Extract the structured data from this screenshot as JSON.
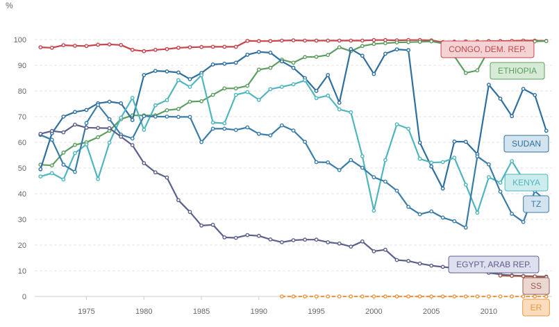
{
  "chart_data": {
    "type": "line",
    "unit_label": "%",
    "xlim": [
      1970.5,
      2015.5
    ],
    "ylim": [
      0,
      100
    ],
    "xticks": [
      1975,
      1980,
      1985,
      1990,
      1995,
      2000,
      2005,
      2010
    ],
    "yticks": [
      0,
      10,
      20,
      30,
      40,
      50,
      60,
      70,
      80,
      90,
      100
    ],
    "grid": true,
    "series": [
      {
        "name": "CONGO, DEM. REP.",
        "color": "#c8434b",
        "label_bg": "#f3d3d4",
        "points": [
          [
            1971,
            97
          ],
          [
            1972,
            96.8
          ],
          [
            1973,
            97.8
          ],
          [
            1974,
            97.6
          ],
          [
            1975,
            97.5
          ],
          [
            1976,
            98
          ],
          [
            1977,
            98.1
          ],
          [
            1978,
            97.9
          ],
          [
            1979,
            96
          ],
          [
            1980,
            95.5
          ],
          [
            1981,
            96
          ],
          [
            1982,
            96.3
          ],
          [
            1983,
            96.8
          ],
          [
            1984,
            97
          ],
          [
            1985,
            97.1
          ],
          [
            1986,
            97.2
          ],
          [
            1987,
            97.2
          ],
          [
            1988,
            97.2
          ],
          [
            1989,
            99.5
          ],
          [
            1990,
            99.4
          ],
          [
            1991,
            99.4
          ],
          [
            1992,
            99.6
          ],
          [
            1993,
            99.7
          ],
          [
            1994,
            99.6
          ],
          [
            1995,
            99.6
          ],
          [
            1996,
            99.6
          ],
          [
            1997,
            99.6
          ],
          [
            1998,
            99.6
          ],
          [
            1999,
            99.6
          ],
          [
            2000,
            99.8
          ],
          [
            2001,
            99.8
          ],
          [
            2002,
            99.7
          ],
          [
            2003,
            99.8
          ],
          [
            2004,
            99.8
          ],
          [
            2005,
            99.7
          ],
          [
            2006,
            99
          ],
          [
            2007,
            99.2
          ],
          [
            2008,
            99.3
          ],
          [
            2009,
            99.3
          ],
          [
            2010,
            99.4
          ],
          [
            2011,
            99.4
          ],
          [
            2012,
            99.5
          ],
          [
            2013,
            99.6
          ],
          [
            2014,
            99.6
          ],
          [
            2015,
            99.5
          ]
        ]
      },
      {
        "name": "ETHIOPIA",
        "color": "#5c9e5f",
        "label_bg": "#d6ead6",
        "points": [
          [
            1971,
            51.3
          ],
          [
            1972,
            51
          ],
          [
            1973,
            56
          ],
          [
            1974,
            59
          ],
          [
            1975,
            60
          ],
          [
            1976,
            62
          ],
          [
            1977,
            64.5
          ],
          [
            1978,
            69
          ],
          [
            1979,
            70.5
          ],
          [
            1980,
            70.5
          ],
          [
            1981,
            70.5
          ],
          [
            1982,
            72.5
          ],
          [
            1983,
            73
          ],
          [
            1984,
            75.8
          ],
          [
            1985,
            76
          ],
          [
            1986,
            78.5
          ],
          [
            1987,
            81
          ],
          [
            1988,
            81
          ],
          [
            1989,
            82
          ],
          [
            1990,
            88.3
          ],
          [
            1991,
            89
          ],
          [
            1992,
            92.2
          ],
          [
            1993,
            91
          ],
          [
            1994,
            93.2
          ],
          [
            1995,
            93.3
          ],
          [
            1996,
            94
          ],
          [
            1997,
            97
          ],
          [
            1998,
            95.5
          ],
          [
            1999,
            97.5
          ],
          [
            2000,
            98.3
          ],
          [
            2001,
            98.6
          ],
          [
            2002,
            98.9
          ],
          [
            2003,
            99
          ],
          [
            2004,
            99.1
          ],
          [
            2005,
            99.3
          ],
          [
            2006,
            98.5
          ],
          [
            2007,
            93.5
          ],
          [
            2008,
            87
          ],
          [
            2009,
            88
          ],
          [
            2010,
            96
          ],
          [
            2011,
            98
          ],
          [
            2012,
            98.5
          ],
          [
            2013,
            99
          ],
          [
            2014,
            99.3
          ],
          [
            2015,
            99.4
          ]
        ]
      },
      {
        "name": "SUDAN",
        "color": "#2e6f9e",
        "label_bg": "#d3e3f0",
        "points": [
          [
            1971,
            49.5
          ],
          [
            1972,
            63.5
          ],
          [
            1973,
            70
          ],
          [
            1974,
            71.8
          ],
          [
            1975,
            72.6
          ],
          [
            1976,
            75.2
          ],
          [
            1977,
            75.8
          ],
          [
            1978,
            75.2
          ],
          [
            1979,
            68.7
          ],
          [
            1980,
            86.2
          ],
          [
            1981,
            87.8
          ],
          [
            1982,
            87.6
          ],
          [
            1983,
            87.2
          ],
          [
            1984,
            84.6
          ],
          [
            1985,
            87
          ],
          [
            1986,
            90.3
          ],
          [
            1987,
            90.6
          ],
          [
            1988,
            91
          ],
          [
            1989,
            94.1
          ],
          [
            1990,
            95.2
          ],
          [
            1991,
            94.9
          ],
          [
            1992,
            91.5
          ],
          [
            1993,
            89
          ],
          [
            1994,
            85
          ],
          [
            1995,
            80
          ],
          [
            1996,
            86.2
          ],
          [
            1997,
            75.4
          ],
          [
            1998,
            96.3
          ],
          [
            1999,
            93.7
          ],
          [
            2000,
            86.6
          ],
          [
            2001,
            94.5
          ],
          [
            2002,
            96.2
          ],
          [
            2003,
            95.9
          ],
          [
            2004,
            59.9
          ],
          [
            2005,
            50.6
          ],
          [
            2006,
            42
          ],
          [
            2007,
            60.3
          ],
          [
            2008,
            60.2
          ],
          [
            2009,
            55.4
          ],
          [
            2010,
            82.4
          ],
          [
            2011,
            77
          ],
          [
            2012,
            70.2
          ],
          [
            2013,
            80.8
          ],
          [
            2014,
            78.4
          ],
          [
            2015,
            64.5
          ]
        ]
      },
      {
        "name": "KENYA",
        "color": "#4fb6bd",
        "label_bg": "#cdecee",
        "points": [
          [
            1971,
            46.7
          ],
          [
            1972,
            48
          ],
          [
            1973,
            45.5
          ],
          [
            1974,
            55.8
          ],
          [
            1975,
            59.2
          ],
          [
            1976,
            45.7
          ],
          [
            1977,
            59.9
          ],
          [
            1978,
            69.6
          ],
          [
            1979,
            77.3
          ],
          [
            1980,
            64.9
          ],
          [
            1981,
            74.4
          ],
          [
            1982,
            76.4
          ],
          [
            1983,
            84.2
          ],
          [
            1984,
            81.6
          ],
          [
            1985,
            86.1
          ],
          [
            1986,
            67.7
          ],
          [
            1987,
            67.4
          ],
          [
            1988,
            78.5
          ],
          [
            1989,
            79.6
          ],
          [
            1990,
            76.5
          ],
          [
            1991,
            80.7
          ],
          [
            1992,
            81.6
          ],
          [
            1993,
            82.6
          ],
          [
            1994,
            84.1
          ],
          [
            1995,
            77.2
          ],
          [
            1996,
            78.2
          ],
          [
            1997,
            72.8
          ],
          [
            1998,
            71.7
          ],
          [
            1999,
            54.6
          ],
          [
            2000,
            33.4
          ],
          [
            2001,
            53.1
          ],
          [
            2002,
            67
          ],
          [
            2003,
            65.3
          ],
          [
            2004,
            53.6
          ],
          [
            2005,
            52.1
          ],
          [
            2006,
            52.3
          ],
          [
            2007,
            54
          ],
          [
            2008,
            43.5
          ],
          [
            2009,
            32.6
          ],
          [
            2010,
            46.4
          ],
          [
            2011,
            44.3
          ],
          [
            2012,
            52.7
          ],
          [
            2013,
            45.5
          ],
          [
            2014,
            42
          ],
          [
            2015,
            42.7
          ]
        ]
      },
      {
        "name": "TZ",
        "color": "#3a7ca8",
        "label_bg": "#d3e3f0",
        "points": [
          [
            1971,
            62.9
          ],
          [
            1972,
            61
          ],
          [
            1973,
            51.3
          ],
          [
            1974,
            48.5
          ],
          [
            1975,
            67.5
          ],
          [
            1976,
            74.6
          ],
          [
            1977,
            69
          ],
          [
            1978,
            63
          ],
          [
            1979,
            61.5
          ],
          [
            1980,
            70.2
          ],
          [
            1981,
            70
          ],
          [
            1982,
            70
          ],
          [
            1983,
            69.9
          ],
          [
            1984,
            69.9
          ],
          [
            1985,
            60.1
          ],
          [
            1986,
            65.3
          ],
          [
            1987,
            65.3
          ],
          [
            1988,
            64.8
          ],
          [
            1989,
            65.8
          ],
          [
            1990,
            63.3
          ],
          [
            1991,
            62.7
          ],
          [
            1992,
            66.6
          ],
          [
            1993,
            64.6
          ],
          [
            1994,
            60.2
          ],
          [
            1995,
            52.3
          ],
          [
            1996,
            52.2
          ],
          [
            1997,
            49.2
          ],
          [
            1998,
            53.1
          ],
          [
            1999,
            50.1
          ],
          [
            2000,
            46.4
          ],
          [
            2001,
            44.7
          ],
          [
            2002,
            41.2
          ],
          [
            2003,
            34.9
          ],
          [
            2004,
            32
          ],
          [
            2005,
            33.1
          ],
          [
            2006,
            30.7
          ],
          [
            2007,
            29.3
          ],
          [
            2008,
            26.8
          ],
          [
            2009,
            54.5
          ],
          [
            2010,
            51.4
          ],
          [
            2011,
            40.8
          ],
          [
            2012,
            32.2
          ],
          [
            2013,
            29
          ],
          [
            2014,
            41
          ],
          [
            2015,
            37.2
          ]
        ]
      },
      {
        "name": "EGYPT, ARAB REP.",
        "color": "#5b5f8a",
        "label_bg": "#dfe0ef",
        "points": [
          [
            1971,
            63.3
          ],
          [
            1972,
            64.4
          ],
          [
            1973,
            63.9
          ],
          [
            1974,
            66.9
          ],
          [
            1975,
            65.7
          ],
          [
            1976,
            65.6
          ],
          [
            1977,
            65.5
          ],
          [
            1978,
            62.2
          ],
          [
            1979,
            58.9
          ],
          [
            1980,
            51.9
          ],
          [
            1981,
            48.3
          ],
          [
            1982,
            46.3
          ],
          [
            1983,
            37.5
          ],
          [
            1984,
            32.9
          ],
          [
            1985,
            27.6
          ],
          [
            1986,
            27.9
          ],
          [
            1987,
            23
          ],
          [
            1988,
            22.8
          ],
          [
            1989,
            23.9
          ],
          [
            1990,
            23.6
          ],
          [
            1991,
            22.2
          ],
          [
            1992,
            21.1
          ],
          [
            1993,
            21.9
          ],
          [
            1994,
            22.1
          ],
          [
            1995,
            22.1
          ],
          [
            1996,
            21.1
          ],
          [
            1997,
            20.6
          ],
          [
            1998,
            19.4
          ],
          [
            1999,
            21.4
          ],
          [
            2000,
            17.6
          ],
          [
            2001,
            18.2
          ],
          [
            2002,
            14.2
          ],
          [
            2003,
            13.8
          ],
          [
            2004,
            12.8
          ],
          [
            2005,
            12
          ],
          [
            2006,
            11.5
          ],
          [
            2007,
            11
          ],
          [
            2008,
            10.5
          ],
          [
            2009,
            9.8
          ],
          [
            2010,
            9.2
          ],
          [
            2011,
            8.6
          ],
          [
            2012,
            8.2
          ],
          [
            2013,
            8
          ],
          [
            2014,
            7.8
          ],
          [
            2015,
            7.7
          ]
        ]
      },
      {
        "name": "SS",
        "color": "#9b5a4d",
        "label_bg": "#ead7d2",
        "points": [
          [
            2011,
            8.1
          ],
          [
            2012,
            8
          ],
          [
            2013,
            7.9
          ],
          [
            2014,
            7.8
          ],
          [
            2015,
            7.5
          ]
        ]
      },
      {
        "name": "ER",
        "color": "#e8973f",
        "label_bg": "#fbdcbd",
        "points": [
          [
            1992,
            0
          ],
          [
            1993,
            0
          ],
          [
            1994,
            0
          ],
          [
            1995,
            0
          ],
          [
            1996,
            0
          ],
          [
            1997,
            0
          ],
          [
            1998,
            0
          ],
          [
            1999,
            0
          ],
          [
            2000,
            0
          ],
          [
            2001,
            0
          ],
          [
            2002,
            0
          ],
          [
            2003,
            0
          ],
          [
            2004,
            0
          ],
          [
            2005,
            0
          ],
          [
            2006,
            0
          ],
          [
            2007,
            0
          ],
          [
            2008,
            0
          ],
          [
            2009,
            0
          ],
          [
            2010,
            0
          ],
          [
            2011,
            0
          ],
          [
            2012,
            0
          ],
          [
            2013,
            0
          ],
          [
            2014,
            0
          ],
          [
            2015,
            0
          ]
        ]
      }
    ]
  }
}
